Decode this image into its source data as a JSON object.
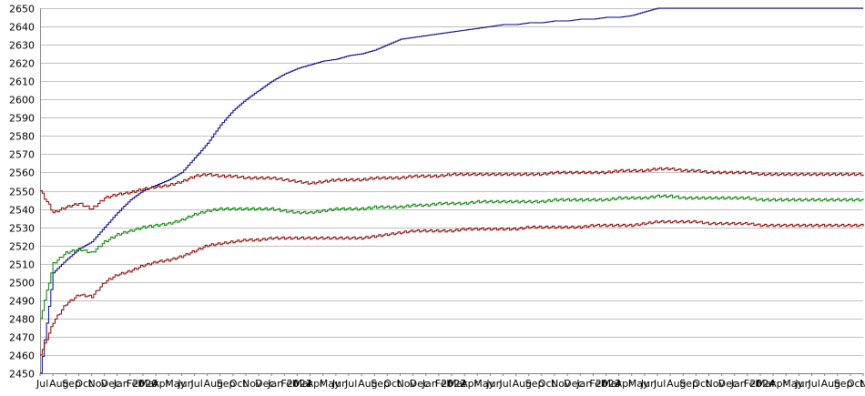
{
  "chart_data": {
    "type": "line",
    "title": "",
    "xlabel": "",
    "ylabel": "",
    "ylim": [
      2450,
      2650
    ],
    "y_ticks": [
      2450,
      2460,
      2470,
      2480,
      2490,
      2500,
      2510,
      2520,
      2530,
      2540,
      2550,
      2560,
      2570,
      2580,
      2590,
      2600,
      2610,
      2620,
      2630,
      2640,
      2650
    ],
    "grid": true,
    "legend": "none",
    "x": [
      "Jul",
      "Aug",
      "Sep",
      "Oct",
      "Nov",
      "Dec",
      "Jan 2020",
      "Feb",
      "Mar",
      "Apr",
      "May",
      "Jun",
      "Jul",
      "Aug",
      "Sep",
      "Oct",
      "Nov",
      "Dec",
      "Jan 2021",
      "Feb",
      "Mar",
      "Apr",
      "May",
      "Jun",
      "Jul",
      "Aug",
      "Sep",
      "Oct",
      "Nov",
      "Dec",
      "Jan 2022",
      "Feb",
      "Mar",
      "Apr",
      "May",
      "Jun",
      "Jul",
      "Aug",
      "Sep",
      "Oct",
      "Nov",
      "Dec",
      "Jan 2023",
      "Feb",
      "Mar",
      "Apr",
      "May",
      "Jun",
      "Jul",
      "Aug",
      "Sep",
      "Oct",
      "Nov",
      "Dec",
      "Jan 2024",
      "Feb",
      "Mar",
      "Apr",
      "May",
      "Jun",
      "Jul",
      "Aug",
      "Sep",
      "Oct",
      "Nov"
    ],
    "series": [
      {
        "color": "#000080",
        "values": [
          2450,
          2505,
          2512,
          2518,
          2522,
          2530,
          2538,
          2545,
          2550,
          2553,
          2556,
          2560,
          2568,
          2576,
          2586,
          2594,
          2600,
          2605,
          2610,
          2614,
          2617,
          2619,
          2621,
          2622,
          2624,
          2625,
          2627,
          2630,
          2633,
          2634,
          2635,
          2636,
          2637,
          2638,
          2639,
          2640,
          2641,
          2641,
          2642,
          2642,
          2643,
          2643,
          2644,
          2644,
          2645,
          2645,
          2646,
          2648,
          2650,
          2650,
          2650,
          2650,
          2650,
          2650,
          2650,
          2650,
          2650,
          2650,
          2650,
          2650,
          2650,
          2650,
          2650,
          2650,
          2650
        ]
      },
      {
        "color": "#8b0000",
        "values": [
          2550,
          2538,
          2541,
          2543,
          2540,
          2546,
          2548,
          2549,
          2551,
          2552,
          2553,
          2555,
          2558,
          2559,
          2558,
          2558,
          2557,
          2557,
          2557,
          2556,
          2555,
          2554,
          2555,
          2556,
          2556,
          2556,
          2557,
          2557,
          2557,
          2558,
          2558,
          2558,
          2559,
          2559,
          2559,
          2559,
          2559,
          2559,
          2559,
          2559,
          2560,
          2560,
          2560,
          2560,
          2560,
          2561,
          2561,
          2561,
          2562,
          2562,
          2561,
          2561,
          2560,
          2560,
          2560,
          2560,
          2559,
          2559,
          2559,
          2559,
          2559,
          2559,
          2559,
          2559,
          2559
        ]
      },
      {
        "color": "#008000",
        "values": [
          2480,
          2510,
          2516,
          2518,
          2516,
          2522,
          2526,
          2528,
          2530,
          2531,
          2532,
          2534,
          2537,
          2539,
          2540,
          2540,
          2540,
          2540,
          2540,
          2539,
          2538,
          2538,
          2539,
          2540,
          2540,
          2540,
          2541,
          2541,
          2541,
          2542,
          2542,
          2543,
          2543,
          2543,
          2544,
          2544,
          2544,
          2544,
          2544,
          2544,
          2545,
          2545,
          2545,
          2545,
          2545,
          2546,
          2546,
          2546,
          2547,
          2547,
          2546,
          2546,
          2546,
          2546,
          2546,
          2546,
          2545,
          2545,
          2545,
          2545,
          2545,
          2545,
          2545,
          2545,
          2545
        ]
      },
      {
        "color": "#8b0000",
        "values": [
          2460,
          2478,
          2488,
          2493,
          2492,
          2500,
          2504,
          2506,
          2509,
          2511,
          2512,
          2514,
          2517,
          2520,
          2521,
          2522,
          2523,
          2523,
          2524,
          2524,
          2524,
          2524,
          2524,
          2524,
          2524,
          2524,
          2525,
          2526,
          2527,
          2528,
          2528,
          2528,
          2528,
          2529,
          2529,
          2529,
          2529,
          2529,
          2530,
          2530,
          2530,
          2530,
          2530,
          2531,
          2531,
          2531,
          2531,
          2532,
          2533,
          2533,
          2533,
          2533,
          2532,
          2532,
          2532,
          2532,
          2531,
          2531,
          2531,
          2531,
          2531,
          2531,
          2531,
          2531,
          2531
        ]
      }
    ]
  }
}
